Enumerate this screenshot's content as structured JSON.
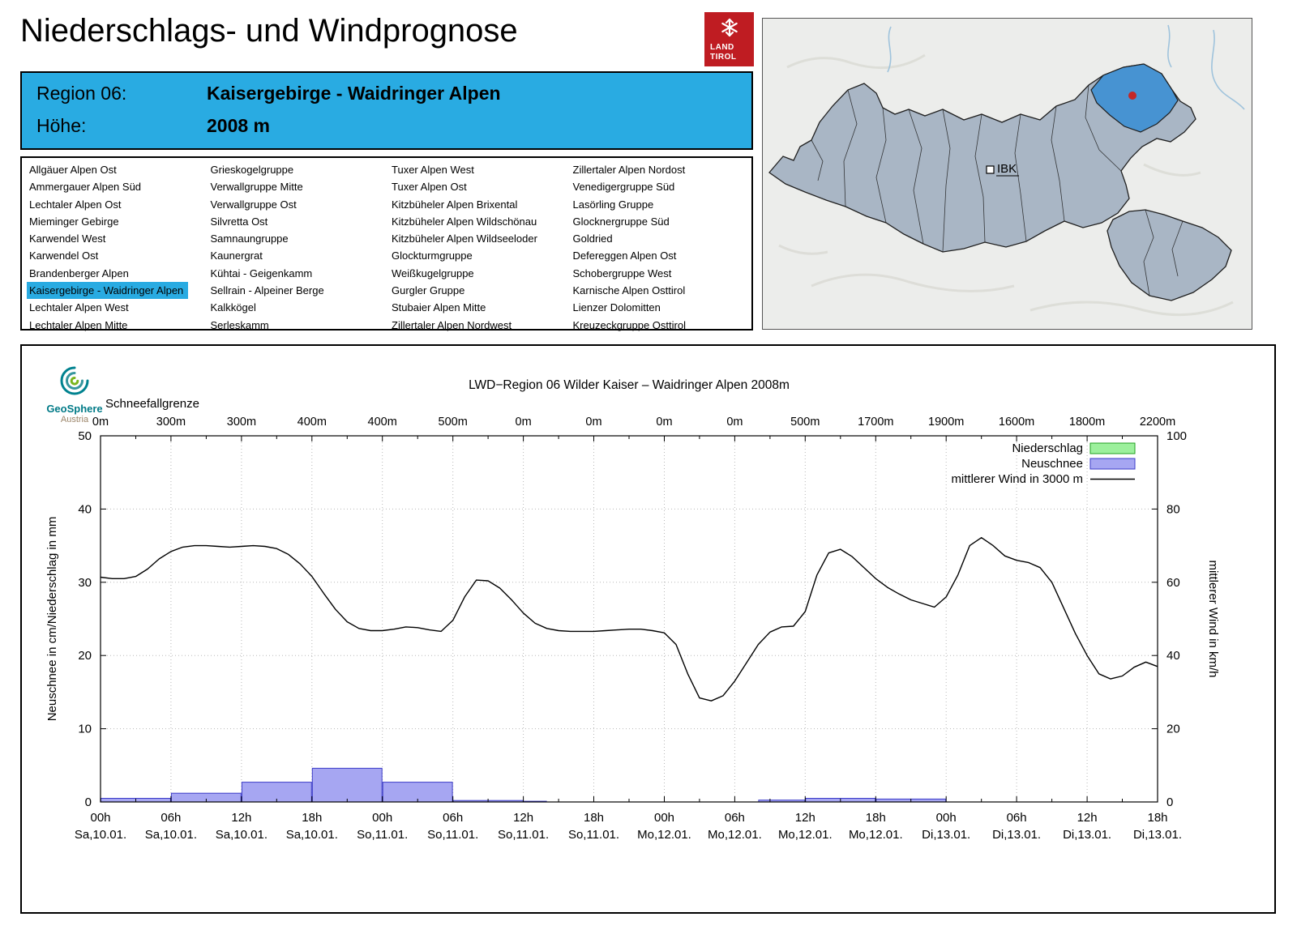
{
  "page": {
    "title": "Niederschlags- und Windprognose"
  },
  "logo": {
    "line1": "LAND",
    "line2": "TIROL"
  },
  "map": {
    "ibk_label": "IBK"
  },
  "colors": {
    "header_blue": "#29abe2",
    "selected_blue": "#29abe2",
    "land_tirol_red": "#bf1c22",
    "map_region_fill": "#a9b6c5",
    "map_highlight": "#4793d2",
    "map_marker_red": "#c42727"
  },
  "region_box": {
    "region_label": "Region 06:",
    "region_value": "Kaisergebirge - Waidringer Alpen",
    "altitude_label": "Höhe:",
    "altitude_value": "2008 m"
  },
  "region_list": {
    "selected": "Kaisergebirge - Waidringer Alpen",
    "columns": [
      [
        "Allgäuer Alpen Ost",
        "Ammergauer Alpen Süd",
        "Lechtaler Alpen Ost",
        "Mieminger Gebirge",
        "Karwendel West",
        "Karwendel Ost",
        "Brandenberger Alpen",
        "Kaisergebirge - Waidringer Alpen",
        "Lechtaler Alpen West",
        "Lechtaler Alpen Mitte"
      ],
      [
        "Grieskogelgruppe",
        "Verwallgruppe Mitte",
        "Verwallgruppe Ost",
        "Silvretta Ost",
        "Samnaungruppe",
        "Kaunergrat",
        "Kühtai - Geigenkamm",
        "Sellrain - Alpeiner Berge",
        "Kalkkögel",
        "Serleskamm"
      ],
      [
        "Tuxer Alpen West",
        "Tuxer Alpen Ost",
        "Kitzbüheler Alpen Brixental",
        "Kitzbüheler Alpen Wildschönau",
        "Kitzbüheler Alpen Wildseeloder",
        "Glockturmgruppe",
        "Weißkugelgruppe",
        "Gurgler Gruppe",
        "Stubaier Alpen Mitte",
        "Zillertaler Alpen Nordwest"
      ],
      [
        "Zillertaler Alpen Nordost",
        "Venedigergruppe Süd",
        "Lasörling Gruppe",
        "Glocknergruppe Süd",
        "Goldried",
        "Defereggen Alpen Ost",
        "Schobergruppe West",
        "Karnische Alpen Osttirol",
        "Lienzer Dolomitten",
        "Kreuzeckgruppe Osttirol"
      ]
    ]
  },
  "geosphere": {
    "name": "GeoSphere",
    "country": "Austria"
  },
  "chart_data": {
    "type": "mixed",
    "title": "LWD−Region 06 Wilder Kaiser – Waidringer Alpen 2008m",
    "snowline_label": "Schneefallgrenze",
    "ylabel_left": "Neuschnee in cm/Niederschlag in mm",
    "ylabel_right": "mittlerer Wind in km/h",
    "ylim_left": [
      0,
      50
    ],
    "ylim_right": [
      0,
      100
    ],
    "yticks_left": [
      0,
      10,
      20,
      30,
      40,
      50
    ],
    "yticks_right": [
      0,
      20,
      40,
      60,
      80,
      100
    ],
    "hours_total": 90,
    "grid": "dotted",
    "legend_position": "top-right",
    "x_ticks": [
      {
        "hour": 0,
        "time": "00h",
        "date": "Sa,10.01.",
        "snowline": "0m"
      },
      {
        "hour": 6,
        "time": "06h",
        "date": "Sa,10.01.",
        "snowline": "300m"
      },
      {
        "hour": 12,
        "time": "12h",
        "date": "Sa,10.01.",
        "snowline": "300m"
      },
      {
        "hour": 18,
        "time": "18h",
        "date": "Sa,10.01.",
        "snowline": "400m"
      },
      {
        "hour": 24,
        "time": "00h",
        "date": "So,11.01.",
        "snowline": "400m"
      },
      {
        "hour": 30,
        "time": "06h",
        "date": "So,11.01.",
        "snowline": "500m"
      },
      {
        "hour": 36,
        "time": "12h",
        "date": "So,11.01.",
        "snowline": "0m"
      },
      {
        "hour": 42,
        "time": "18h",
        "date": "So,11.01.",
        "snowline": "0m"
      },
      {
        "hour": 48,
        "time": "00h",
        "date": "Mo,12.01.",
        "snowline": "0m"
      },
      {
        "hour": 54,
        "time": "06h",
        "date": "Mo,12.01.",
        "snowline": "0m"
      },
      {
        "hour": 60,
        "time": "12h",
        "date": "Mo,12.01.",
        "snowline": "500m"
      },
      {
        "hour": 66,
        "time": "18h",
        "date": "Mo,12.01.",
        "snowline": "1700m"
      },
      {
        "hour": 72,
        "time": "00h",
        "date": "Di,13.01.",
        "snowline": "1900m"
      },
      {
        "hour": 78,
        "time": "06h",
        "date": "Di,13.01.",
        "snowline": "1600m"
      },
      {
        "hour": 84,
        "time": "12h",
        "date": "Di,13.01.",
        "snowline": "1800m"
      },
      {
        "hour": 90,
        "time": "18h",
        "date": "Di,13.01.",
        "snowline": "2200m"
      }
    ],
    "legend": [
      {
        "label": "Niederschlag",
        "color": "#9cf09c",
        "border": "#22a022",
        "type": "box"
      },
      {
        "label": "Neuschnee",
        "color": "#a6a6f2",
        "border": "#3c3cc8",
        "type": "box"
      },
      {
        "label": "mittlerer Wind in 3000 m",
        "color": "#000000",
        "type": "line"
      }
    ],
    "niederschlag_bars_mm": [],
    "neuschnee_bars_cm": [
      {
        "start": 0,
        "end": 6,
        "value": 0.5
      },
      {
        "start": 6,
        "end": 12,
        "value": 1.2
      },
      {
        "start": 12,
        "end": 18,
        "value": 2.7
      },
      {
        "start": 18,
        "end": 24,
        "value": 4.6
      },
      {
        "start": 24,
        "end": 30,
        "value": 2.7
      },
      {
        "start": 30,
        "end": 36,
        "value": 0.2
      },
      {
        "start": 36,
        "end": 38,
        "value": 0.1
      },
      {
        "start": 56,
        "end": 60,
        "value": 0.25
      },
      {
        "start": 60,
        "end": 66,
        "value": 0.5
      },
      {
        "start": 66,
        "end": 72,
        "value": 0.4
      }
    ],
    "wind_kmh": {
      "name": "mittlerer Wind in 3000 m",
      "x_step_hours": 1,
      "values": [
        61.4,
        61.0,
        61.0,
        61.6,
        63.6,
        66.4,
        68.4,
        69.6,
        70.0,
        70.0,
        69.8,
        69.6,
        69.8,
        70.0,
        69.8,
        69.2,
        67.6,
        65.0,
        61.6,
        57.0,
        52.6,
        49.2,
        47.4,
        46.8,
        46.8,
        47.2,
        47.8,
        47.6,
        47.0,
        46.6,
        49.6,
        56.0,
        60.6,
        60.4,
        58.4,
        55.2,
        51.6,
        48.8,
        47.4,
        46.8,
        46.6,
        46.6,
        46.6,
        46.8,
        47.0,
        47.2,
        47.2,
        46.8,
        46.2,
        43.0,
        35.0,
        28.4,
        27.6,
        29.0,
        33.0,
        38.0,
        43.0,
        46.4,
        47.8,
        48.0,
        52.0,
        62.0,
        68.0,
        69.0,
        67.0,
        64.0,
        61.0,
        58.6,
        56.8,
        55.2,
        54.2,
        53.2,
        56.0,
        62.0,
        70.0,
        72.2,
        70.0,
        67.2,
        66.0,
        65.4,
        64.0,
        60.0,
        53.0,
        46.0,
        40.0,
        35.0,
        33.6,
        34.4,
        36.8,
        38.2,
        37.0
      ]
    }
  }
}
